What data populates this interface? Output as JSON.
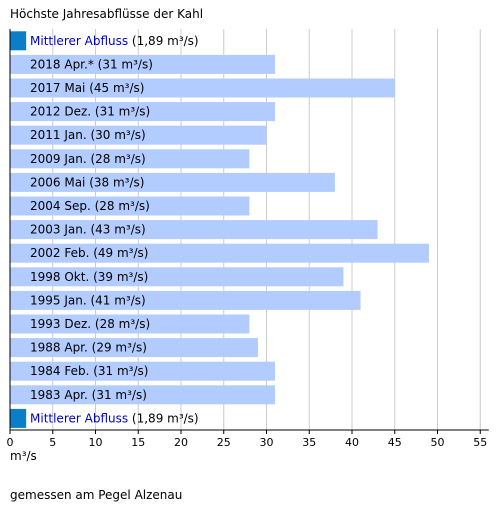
{
  "chart_data": {
    "type": "bar",
    "orientation": "horizontal",
    "title": "Höchste Jahresabflüsse der Kahl",
    "categories": [
      "2018 Apr.*",
      "2017 Mai",
      "2012 Dez.",
      "2011 Jan.",
      "2009 Jan.",
      "2006 Mai",
      "2004 Sep.",
      "2003 Jan.",
      "2002 Feb.",
      "1998 Okt.",
      "1995 Jan.",
      "1993 Dez.",
      "1988 Apr.",
      "1984 Feb.",
      "1983 Apr."
    ],
    "values": [
      31,
      45,
      31,
      30,
      28,
      38,
      28,
      43,
      49,
      39,
      41,
      28,
      29,
      31,
      31
    ],
    "value_labels": [
      "(31 m³/s)",
      "(45 m³/s)",
      "(31 m³/s)",
      "(30 m³/s)",
      "(28 m³/s)",
      "(38 m³/s)",
      "(28 m³/s)",
      "(43 m³/s)",
      "(49 m³/s)",
      "(39 m³/s)",
      "(41 m³/s)",
      "(28 m³/s)",
      "(29 m³/s)",
      "(31 m³/s)",
      "(31 m³/s)"
    ],
    "reference": {
      "label": "Mittlerer Abfluss",
      "value": 1.89,
      "value_label": "(1,89 m³/s)"
    },
    "xlabel": "m³/s",
    "xlim": [
      0,
      56
    ],
    "xticks": [
      0,
      5,
      10,
      15,
      20,
      25,
      30,
      35,
      40,
      45,
      50,
      55
    ],
    "grid": true,
    "footnote": "gemessen am Pegel Alzenau"
  },
  "colors": {
    "bar": "#b3ccff",
    "reference": "#0a7fc8",
    "grid": "#cccccc",
    "axis": "#000000",
    "reference_text": "#0000cc"
  }
}
